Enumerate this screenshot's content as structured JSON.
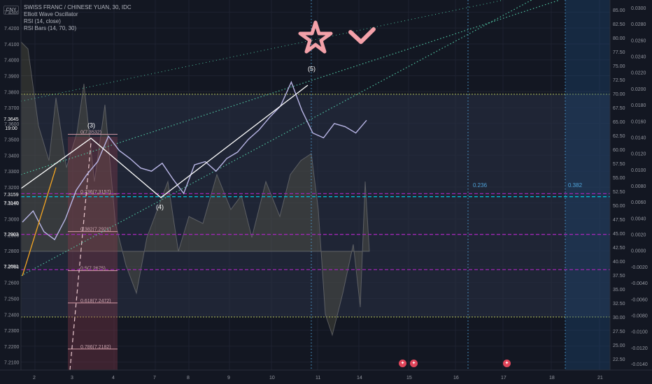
{
  "header": {
    "symbol_badge": "CNY",
    "title": "SWISS FRANC / CHINESE YUAN, 30, IDC",
    "indicators": [
      "Elliott Wave Oscillator",
      "RSI (14, close)",
      "RSI Bars (14, 70, 30)"
    ]
  },
  "price_tags": [
    {
      "label": "7.3645",
      "color": "#5b5f8a"
    },
    {
      "label": "19:00",
      "color": "#5b5f8a"
    },
    {
      "label": "7.3159",
      "color": "#9c27b0"
    },
    {
      "label": "7.3140",
      "color": "#00bcd4"
    },
    {
      "label": "7.2903",
      "color": "#9c27b0"
    },
    {
      "label": "7.2681",
      "color": "#9c27b0"
    }
  ],
  "chart_data": {
    "type": "line",
    "title": "SWISS FRANC / CHINESE YUAN, 30, IDC",
    "price_axis": {
      "ticks": [
        "7.4300",
        "7.4200",
        "7.4100",
        "7.4000",
        "7.3900",
        "7.3800",
        "7.3700",
        "7.3600",
        "7.3500",
        "7.3400",
        "7.3300",
        "7.3200",
        "7.3100",
        "7.3000",
        "7.2900",
        "7.2800",
        "7.2700",
        "7.2600",
        "7.2500",
        "7.2400",
        "7.2300",
        "7.2200",
        "7.2100"
      ],
      "ylim": [
        7.205,
        7.435
      ]
    },
    "rsi_axis": {
      "ticks": [
        "85.00",
        "82.50",
        "80.00",
        "77.50",
        "75.00",
        "72.50",
        "70.00",
        "67.50",
        "65.00",
        "62.50",
        "60.00",
        "57.50",
        "55.00",
        "52.50",
        "50.00",
        "47.50",
        "45.00",
        "42.50",
        "40.00",
        "37.50",
        "35.00",
        "32.50",
        "30.00",
        "27.50",
        "25.00",
        "22.50"
      ]
    },
    "osc_axis": {
      "ticks": [
        "0.0300",
        "0.0280",
        "0.0260",
        "0.0240",
        "0.0220",
        "0.0200",
        "0.0180",
        "0.0160",
        "0.0140",
        "0.0120",
        "0.0100",
        "0.0080",
        "0.0060",
        "0.0040",
        "0.0020",
        "0.0000",
        "-0.0020",
        "-0.0040",
        "-0.0060",
        "-0.0080",
        "-0.0100",
        "-0.0120",
        "-0.0140"
      ]
    },
    "x_axis": {
      "ticks": [
        "2",
        "3",
        "4",
        "7",
        "8",
        "9",
        "10",
        "11",
        "14",
        "15",
        "16",
        "17",
        "18",
        "21"
      ]
    },
    "series": [
      {
        "name": "CHF/CNY",
        "values": [
          7.298,
          7.305,
          7.292,
          7.287,
          7.3,
          7.318,
          7.328,
          7.336,
          7.352,
          7.343,
          7.338,
          7.332,
          7.33,
          7.335,
          7.325,
          7.316,
          7.334,
          7.336,
          7.33,
          7.338,
          7.342,
          7.35,
          7.356,
          7.364,
          7.371,
          7.386,
          7.368,
          7.354,
          7.351,
          7.36,
          7.358,
          7.354,
          7.362
        ]
      }
    ],
    "elliott_waves": [
      {
        "label": "(3)",
        "price": 7.354
      },
      {
        "label": "(4)",
        "price": 7.315
      },
      {
        "label": "(5)",
        "price": 7.387
      }
    ],
    "fib_levels": [
      {
        "label": "0(7.3532)",
        "price": 7.3532
      },
      {
        "label": "0.236(7.3157)",
        "price": 7.3157
      },
      {
        "label": "0.382(7.2921)",
        "price": 7.2921
      },
      {
        "label": "0.5(7.2675)",
        "price": 7.2675
      },
      {
        "label": "0.618(7.2472)",
        "price": 7.2472
      },
      {
        "label": "0.786(7.2182)",
        "price": 7.2182
      }
    ],
    "time_ratios": [
      "0.236",
      "0.382"
    ],
    "horizontal_levels": [
      7.3159,
      7.314,
      7.2903,
      7.2681
    ],
    "rsi_band": [
      70,
      30
    ],
    "grid": true
  }
}
